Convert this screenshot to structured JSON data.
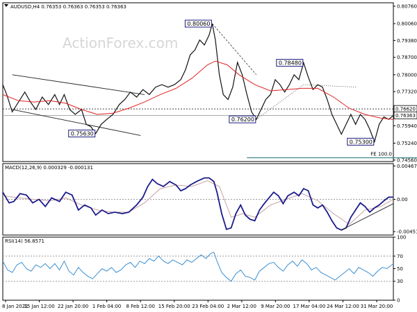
{
  "chart_data": [
    {
      "type": "candlestick",
      "title": "AUDUSD,H4  0.76353 0.76363 0.76353 0.76363",
      "watermark": "ActionForex.com",
      "ylim": [
        0.745,
        0.809
      ],
      "y_ticks": [
        "0.80760",
        "0.80060",
        "0.79380",
        "0.78700",
        "0.78000",
        "0.77320",
        "0.76620",
        "0.75940",
        "0.75240",
        "0.74560"
      ],
      "x_labels": [
        "8 Jan 2021",
        "15 Jan 12:00",
        "22 Jan 20:00",
        "1 Feb 04:00",
        "8 Feb 12:00",
        "15 Feb 20:00",
        "23 Feb 04:00",
        "2 Mar 12:00",
        "9 Mar 20:00",
        "17 Mar 04:00",
        "24 Mar 12:00",
        "31 Mar 20:00"
      ],
      "price_path": [
        [
          0,
          0.776
        ],
        [
          5,
          0.772
        ],
        [
          12,
          0.765
        ],
        [
          20,
          0.769
        ],
        [
          28,
          0.773
        ],
        [
          35,
          0.769
        ],
        [
          42,
          0.766
        ],
        [
          50,
          0.771
        ],
        [
          58,
          0.768
        ],
        [
          66,
          0.772
        ],
        [
          72,
          0.768
        ],
        [
          78,
          0.772
        ],
        [
          85,
          0.766
        ],
        [
          92,
          0.764
        ],
        [
          100,
          0.766
        ],
        [
          106,
          0.76
        ],
        [
          112,
          0.759
        ],
        [
          118,
          0.7563
        ],
        [
          125,
          0.76
        ],
        [
          132,
          0.762
        ],
        [
          140,
          0.764
        ],
        [
          148,
          0.768
        ],
        [
          155,
          0.77
        ],
        [
          162,
          0.773
        ],
        [
          170,
          0.771
        ],
        [
          178,
          0.774
        ],
        [
          186,
          0.772
        ],
        [
          194,
          0.775
        ],
        [
          202,
          0.776
        ],
        [
          210,
          0.775
        ],
        [
          218,
          0.776
        ],
        [
          226,
          0.778
        ],
        [
          232,
          0.782
        ],
        [
          238,
          0.788
        ],
        [
          244,
          0.79
        ],
        [
          250,
          0.794
        ],
        [
          256,
          0.792
        ],
        [
          262,
          0.796
        ],
        [
          266,
          0.8006
        ],
        [
          270,
          0.794
        ],
        [
          275,
          0.78
        ],
        [
          280,
          0.772
        ],
        [
          286,
          0.77
        ],
        [
          292,
          0.775
        ],
        [
          298,
          0.785
        ],
        [
          304,
          0.78
        ],
        [
          310,
          0.772
        ],
        [
          316,
          0.765
        ],
        [
          322,
          0.762
        ],
        [
          328,
          0.766
        ],
        [
          334,
          0.77
        ],
        [
          340,
          0.772
        ],
        [
          346,
          0.778
        ],
        [
          352,
          0.776
        ],
        [
          358,
          0.773
        ],
        [
          364,
          0.776
        ],
        [
          370,
          0.78
        ],
        [
          376,
          0.778
        ],
        [
          382,
          0.7848
        ],
        [
          388,
          0.779
        ],
        [
          394,
          0.774
        ],
        [
          400,
          0.776
        ],
        [
          406,
          0.775
        ],
        [
          412,
          0.77
        ],
        [
          418,
          0.764
        ],
        [
          424,
          0.76
        ],
        [
          430,
          0.756
        ],
        [
          436,
          0.76
        ],
        [
          442,
          0.764
        ],
        [
          448,
          0.76
        ],
        [
          454,
          0.764
        ],
        [
          460,
          0.762
        ],
        [
          466,
          0.758
        ],
        [
          472,
          0.753
        ],
        [
          478,
          0.76
        ],
        [
          484,
          0.763
        ],
        [
          490,
          0.762
        ],
        [
          496,
          0.7636
        ]
      ],
      "ma_path": [
        [
          0,
          0.772
        ],
        [
          20,
          0.7695
        ],
        [
          40,
          0.769
        ],
        [
          60,
          0.7695
        ],
        [
          80,
          0.7685
        ],
        [
          100,
          0.766
        ],
        [
          120,
          0.764
        ],
        [
          140,
          0.7645
        ],
        [
          160,
          0.7665
        ],
        [
          180,
          0.769
        ],
        [
          200,
          0.772
        ],
        [
          220,
          0.7745
        ],
        [
          240,
          0.7785
        ],
        [
          260,
          0.784
        ],
        [
          270,
          0.7855
        ],
        [
          285,
          0.784
        ],
        [
          300,
          0.78
        ],
        [
          320,
          0.776
        ],
        [
          340,
          0.7735
        ],
        [
          360,
          0.774
        ],
        [
          380,
          0.7745
        ],
        [
          400,
          0.7745
        ],
        [
          420,
          0.771
        ],
        [
          440,
          0.7665
        ],
        [
          460,
          0.764
        ],
        [
          480,
          0.7625
        ],
        [
          496,
          0.762
        ]
      ],
      "horizontal_lines": [
        0.7662,
        0.7636
      ],
      "channel_lines": [
        [
          [
            12,
            0.78
          ],
          [
            180,
            0.772
          ]
        ],
        [
          [
            12,
            0.766
          ],
          [
            175,
            0.7555
          ]
        ]
      ],
      "dashed_line": [
        [
          266,
          0.8006
        ],
        [
          322,
          0.78
        ]
      ],
      "dotted_line": [
        [
          322,
          0.762
        ],
        [
          382,
          0.776
        ],
        [
          450,
          0.775
        ]
      ],
      "fe_line": {
        "x": [
          310,
          534
        ],
        "y": 0.7465,
        "label": "FE 100.0"
      },
      "price_labels": [
        {
          "text": "0.80060",
          "x": 266,
          "y": 0.8006,
          "anchor": "left"
        },
        {
          "text": "0.78480",
          "x": 382,
          "y": 0.7848,
          "anchor": "left"
        },
        {
          "text": "0.76200",
          "x": 322,
          "y": 0.762,
          "anchor": "left"
        },
        {
          "text": "0.75630",
          "x": 118,
          "y": 0.7563,
          "anchor": "left"
        },
        {
          "text": "0.75300",
          "x": 472,
          "y": 0.753,
          "anchor": "left"
        }
      ],
      "right_labels": [
        "0.76620",
        "0.76363"
      ]
    },
    {
      "type": "line",
      "title": "MACD(12,26,9) 0.000329 -0.000131",
      "ylim": [
        -0.005,
        0.005
      ],
      "y_ticks": [
        "0.004677",
        "0.00",
        "-0.004519"
      ],
      "zero_line": true,
      "macd_path": [
        [
          0,
          0.001
        ],
        [
          8,
          -0.0005
        ],
        [
          14,
          -0.0003
        ],
        [
          22,
          0.0008
        ],
        [
          30,
          0.0006
        ],
        [
          38,
          -0.0005
        ],
        [
          46,
          0.0
        ],
        [
          54,
          -0.001
        ],
        [
          62,
          0.0002
        ],
        [
          72,
          -0.0003
        ],
        [
          80,
          0.001
        ],
        [
          88,
          0.0006
        ],
        [
          96,
          -0.0015
        ],
        [
          104,
          -0.0008
        ],
        [
          112,
          -0.0012
        ],
        [
          118,
          -0.0022
        ],
        [
          126,
          -0.0015
        ],
        [
          134,
          -0.002
        ],
        [
          142,
          -0.0018
        ],
        [
          152,
          -0.002
        ],
        [
          160,
          -0.0018
        ],
        [
          170,
          -0.0008
        ],
        [
          178,
          0.0003
        ],
        [
          184,
          0.0018
        ],
        [
          190,
          0.0028
        ],
        [
          196,
          0.0022
        ],
        [
          204,
          0.0018
        ],
        [
          212,
          0.0025
        ],
        [
          220,
          0.002
        ],
        [
          226,
          0.0012
        ],
        [
          232,
          0.0015
        ],
        [
          238,
          0.002
        ],
        [
          246,
          0.0025
        ],
        [
          256,
          0.003
        ],
        [
          262,
          0.003
        ],
        [
          268,
          0.0025
        ],
        [
          272,
          0.001
        ],
        [
          278,
          -0.002
        ],
        [
          284,
          -0.0042
        ],
        [
          290,
          -0.004
        ],
        [
          296,
          -0.002
        ],
        [
          302,
          -0.0008
        ],
        [
          308,
          -0.0022
        ],
        [
          314,
          -0.0028
        ],
        [
          320,
          -0.003
        ],
        [
          326,
          -0.0015
        ],
        [
          332,
          -0.0006
        ],
        [
          338,
          0.0002
        ],
        [
          344,
          0.001
        ],
        [
          350,
          0.0005
        ],
        [
          356,
          -0.0006
        ],
        [
          362,
          0.0005
        ],
        [
          370,
          0.001
        ],
        [
          376,
          0.0005
        ],
        [
          382,
          0.0015
        ],
        [
          388,
          0.0012
        ],
        [
          394,
          -0.0008
        ],
        [
          400,
          -0.0012
        ],
        [
          406,
          -0.0008
        ],
        [
          412,
          -0.0018
        ],
        [
          418,
          -0.003
        ],
        [
          424,
          -0.004
        ],
        [
          430,
          -0.0043
        ],
        [
          436,
          -0.004
        ],
        [
          442,
          -0.0025
        ],
        [
          448,
          -0.0015
        ],
        [
          454,
          -0.0005
        ],
        [
          460,
          -0.001
        ],
        [
          466,
          -0.0018
        ],
        [
          472,
          -0.0012
        ],
        [
          478,
          -0.0008
        ],
        [
          484,
          -0.0002
        ],
        [
          490,
          0.0003
        ],
        [
          496,
          0.0003
        ]
      ],
      "signal_path": [
        [
          0,
          0.0005
        ],
        [
          20,
          0.0002
        ],
        [
          40,
          0.0
        ],
        [
          60,
          -0.0002
        ],
        [
          80,
          0.0002
        ],
        [
          100,
          -0.0008
        ],
        [
          120,
          -0.0015
        ],
        [
          140,
          -0.0018
        ],
        [
          160,
          -0.0018
        ],
        [
          180,
          -0.0005
        ],
        [
          200,
          0.0015
        ],
        [
          220,
          0.002
        ],
        [
          240,
          0.0018
        ],
        [
          260,
          0.0026
        ],
        [
          275,
          0.0018
        ],
        [
          290,
          -0.0025
        ],
        [
          305,
          -0.002
        ],
        [
          320,
          -0.0025
        ],
        [
          340,
          -0.0008
        ],
        [
          360,
          0.0
        ],
        [
          380,
          0.0008
        ],
        [
          400,
          -0.0002
        ],
        [
          420,
          -0.002
        ],
        [
          440,
          -0.0035
        ],
        [
          460,
          -0.0015
        ],
        [
          480,
          -0.001
        ],
        [
          496,
          0.0
        ]
      ],
      "trendline": [
        [
          430,
          -0.0043
        ],
        [
          496,
          -0.0006
        ]
      ]
    },
    {
      "type": "line",
      "title": "RSI(14) 56.8571",
      "ylim": [
        0,
        100
      ],
      "y_ticks": [
        "100",
        "70",
        "50",
        "30",
        "0"
      ],
      "levels": [
        70,
        30
      ],
      "rsi_path": [
        [
          0,
          62
        ],
        [
          6,
          48
        ],
        [
          12,
          44
        ],
        [
          18,
          56
        ],
        [
          24,
          60
        ],
        [
          30,
          50
        ],
        [
          36,
          46
        ],
        [
          42,
          56
        ],
        [
          48,
          52
        ],
        [
          54,
          58
        ],
        [
          60,
          50
        ],
        [
          66,
          58
        ],
        [
          72,
          48
        ],
        [
          78,
          62
        ],
        [
          84,
          46
        ],
        [
          90,
          40
        ],
        [
          96,
          52
        ],
        [
          102,
          44
        ],
        [
          108,
          38
        ],
        [
          114,
          34
        ],
        [
          120,
          42
        ],
        [
          126,
          50
        ],
        [
          132,
          46
        ],
        [
          138,
          52
        ],
        [
          144,
          44
        ],
        [
          150,
          48
        ],
        [
          156,
          56
        ],
        [
          162,
          60
        ],
        [
          168,
          52
        ],
        [
          174,
          62
        ],
        [
          180,
          58
        ],
        [
          186,
          66
        ],
        [
          192,
          62
        ],
        [
          198,
          70
        ],
        [
          204,
          62
        ],
        [
          210,
          58
        ],
        [
          216,
          64
        ],
        [
          222,
          60
        ],
        [
          228,
          56
        ],
        [
          234,
          64
        ],
        [
          240,
          60
        ],
        [
          246,
          66
        ],
        [
          252,
          72
        ],
        [
          258,
          66
        ],
        [
          264,
          74
        ],
        [
          268,
          76
        ],
        [
          272,
          62
        ],
        [
          278,
          44
        ],
        [
          284,
          36
        ],
        [
          290,
          30
        ],
        [
          296,
          42
        ],
        [
          302,
          48
        ],
        [
          308,
          38
        ],
        [
          314,
          36
        ],
        [
          320,
          32
        ],
        [
          326,
          46
        ],
        [
          332,
          52
        ],
        [
          338,
          58
        ],
        [
          344,
          60
        ],
        [
          350,
          52
        ],
        [
          356,
          46
        ],
        [
          362,
          56
        ],
        [
          368,
          62
        ],
        [
          374,
          54
        ],
        [
          380,
          64
        ],
        [
          386,
          58
        ],
        [
          392,
          48
        ],
        [
          398,
          52
        ],
        [
          404,
          44
        ],
        [
          410,
          40
        ],
        [
          416,
          36
        ],
        [
          422,
          32
        ],
        [
          428,
          38
        ],
        [
          434,
          44
        ],
        [
          440,
          50
        ],
        [
          446,
          42
        ],
        [
          452,
          52
        ],
        [
          458,
          48
        ],
        [
          464,
          44
        ],
        [
          470,
          38
        ],
        [
          476,
          46
        ],
        [
          482,
          52
        ],
        [
          488,
          50
        ],
        [
          494,
          56
        ],
        [
          496,
          57
        ]
      ]
    }
  ]
}
